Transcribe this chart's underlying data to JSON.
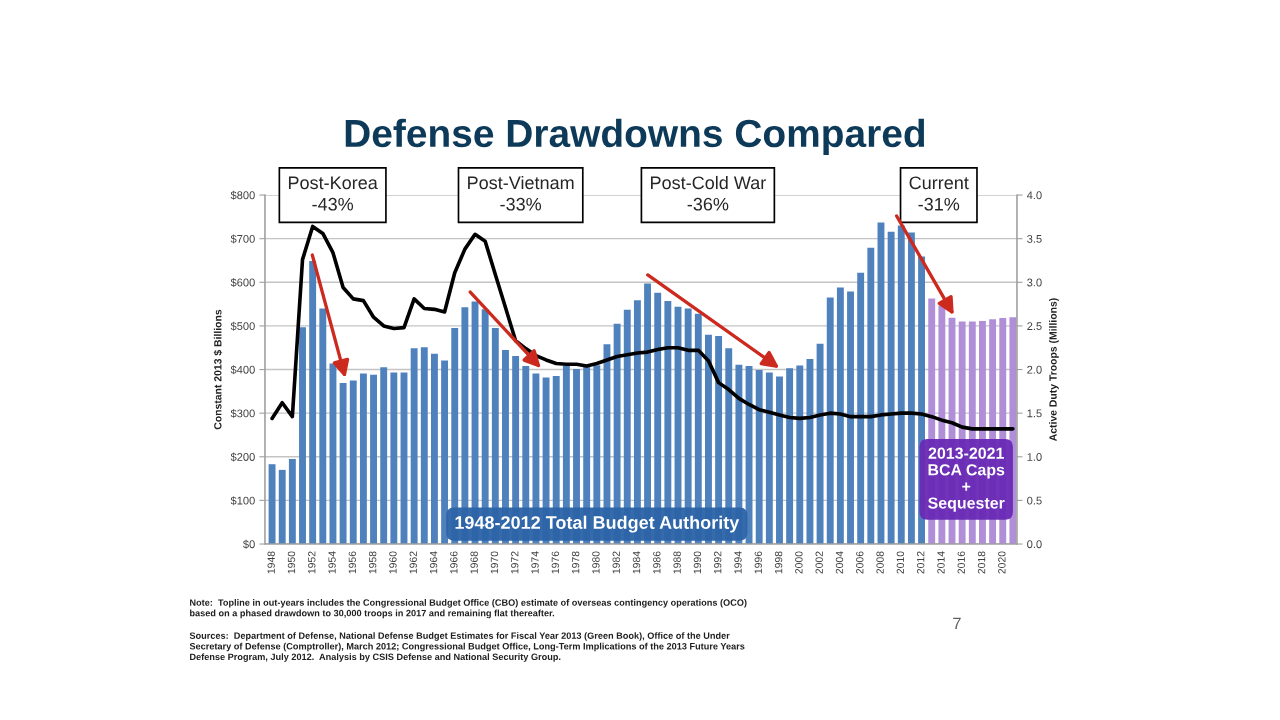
{
  "chart_data": {
    "type": "bar",
    "title": "Defense Drawdowns Compared",
    "categories": [
      "1948",
      null,
      "1950",
      null,
      "1952",
      null,
      "1954",
      null,
      "1956",
      null,
      "1958",
      null,
      "1960",
      null,
      "1962",
      null,
      "1964",
      null,
      "1966",
      null,
      "1968",
      null,
      "1970",
      null,
      "1972",
      null,
      "1974",
      null,
      "1976",
      null,
      "1978",
      null,
      "1980",
      null,
      "1982",
      null,
      "1984",
      null,
      "1986",
      null,
      "1988",
      null,
      "1990",
      null,
      "1992",
      null,
      "1994",
      null,
      "1996",
      null,
      "1998",
      null,
      "2000",
      null,
      "2002",
      null,
      "2004",
      null,
      "2006",
      null,
      "2008",
      null,
      "2010",
      null,
      "2012",
      null,
      "2014",
      null,
      "2016",
      null,
      "2018",
      null,
      "2020",
      null
    ],
    "series": [
      {
        "name": "1948-2012 Total Budget Authority",
        "color": "#4f81bd",
        "values": [
          183,
          170,
          195,
          497,
          649,
          540,
          414,
          369,
          375,
          391,
          388,
          405,
          393,
          393,
          449,
          451,
          436,
          421,
          495,
          543,
          556,
          538,
          495,
          445,
          431,
          408,
          391,
          382,
          385,
          408,
          401,
          407,
          410,
          458,
          505,
          537,
          559,
          597,
          576,
          557,
          544,
          540,
          528,
          480,
          477,
          449,
          411,
          408,
          399,
          393,
          384,
          403,
          409,
          424,
          459,
          565,
          588,
          579,
          622,
          679,
          737,
          716,
          730,
          714,
          659,
          null,
          null,
          null,
          null,
          null,
          null,
          null,
          null,
          null
        ]
      },
      {
        "name": "2013-2021\nBCA Caps\n+\nSequester",
        "color": "#b08fd8",
        "values": [
          null,
          null,
          null,
          null,
          null,
          null,
          null,
          null,
          null,
          null,
          null,
          null,
          null,
          null,
          null,
          null,
          null,
          null,
          null,
          null,
          null,
          null,
          null,
          null,
          null,
          null,
          null,
          null,
          null,
          null,
          null,
          null,
          null,
          null,
          null,
          null,
          null,
          null,
          null,
          null,
          null,
          null,
          null,
          null,
          null,
          null,
          null,
          null,
          null,
          null,
          null,
          null,
          null,
          null,
          null,
          null,
          null,
          null,
          null,
          null,
          null,
          null,
          null,
          null,
          null,
          563,
          546,
          519,
          510,
          510,
          511,
          515,
          518,
          520
        ]
      },
      {
        "type": "line",
        "axis": "y2",
        "color": "#000000",
        "values": [
          1.44,
          1.62,
          1.46,
          3.26,
          3.64,
          3.56,
          3.34,
          2.94,
          2.81,
          2.79,
          2.6,
          2.5,
          2.47,
          2.48,
          2.81,
          2.7,
          2.69,
          2.66,
          3.11,
          3.38,
          3.55,
          3.47,
          3.09,
          2.71,
          2.33,
          2.24,
          2.16,
          2.11,
          2.07,
          2.06,
          2.06,
          2.04,
          2.07,
          2.11,
          2.15,
          2.17,
          2.19,
          2.2,
          2.23,
          2.25,
          2.25,
          2.22,
          2.22,
          2.1,
          1.85,
          1.77,
          1.67,
          1.6,
          1.54,
          1.51,
          1.48,
          1.45,
          1.44,
          1.45,
          1.48,
          1.5,
          1.49,
          1.46,
          1.46,
          1.46,
          1.48,
          1.49,
          1.5,
          1.5,
          1.49,
          1.46,
          1.42,
          1.39,
          1.34,
          1.32,
          1.32,
          1.32,
          1.32,
          1.32
        ]
      }
    ],
    "ylabel": "Constant 2013 $ Billions",
    "y2label": "Active Duty Troops (Millions)",
    "ylim": [
      0,
      800
    ],
    "yticks": [
      {
        "value": 0,
        "label": "$0"
      },
      {
        "value": 100,
        "label": "$100"
      },
      {
        "value": 200,
        "label": "$200"
      },
      {
        "value": 300,
        "label": "$300"
      },
      {
        "value": 400,
        "label": "$400"
      },
      {
        "value": 500,
        "label": "$500"
      },
      {
        "value": 600,
        "label": "$600"
      },
      {
        "value": 700,
        "label": "$700"
      },
      {
        "value": 800,
        "label": "$800"
      }
    ],
    "y2lim": [
      0,
      4
    ],
    "y2ticks": [
      {
        "value": 0,
        "label": "0.0"
      },
      {
        "value": 0.5,
        "label": "0.5"
      },
      {
        "value": 1,
        "label": "1.0"
      },
      {
        "value": 1.5,
        "label": "1.5"
      },
      {
        "value": 2,
        "label": "2.0"
      },
      {
        "value": 2.5,
        "label": "2.5"
      },
      {
        "value": 3,
        "label": "3.0"
      },
      {
        "value": 3.5,
        "label": "3.5"
      },
      {
        "value": 4,
        "label": "4.0"
      }
    ],
    "grid": "y",
    "annotations": [
      "Post-Korea\n-43%",
      "Post-Vietnam\n-33%",
      "Post-Cold War\n-36%",
      "Current\n-31%",
      "Note:  Topline in out-years includes the Congressional Budget Office (CBO) estimate of overseas contingency operations (OCO)\nbased on a phased drawdown to 30,000 troops in 2017 and remaining flat thereafter.",
      "Sources:  Department of Defense, National Defense Budget Estimates for Fiscal Year 2013 (Green Book), Office of the Under\nSecretary of Defense (Comptroller), March 2012; Congressional Budget Office, Long-Term Implications of the 2013 Future Years\nDefense Program, July 2012.  Analysis by CSIS Defense and National Security Group.",
      "7"
    ]
  }
}
